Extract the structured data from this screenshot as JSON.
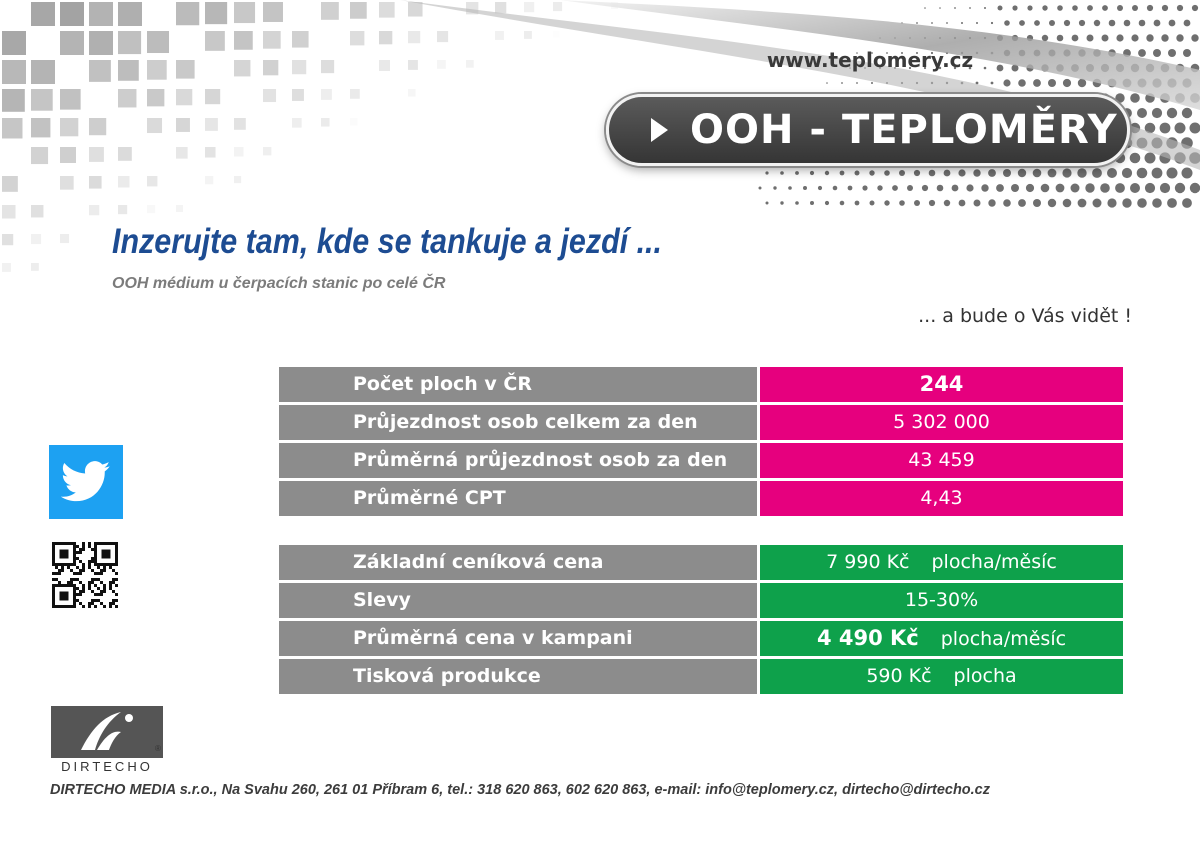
{
  "header": {
    "url": "www.teplomery.cz",
    "badge_title": "OOH - TEPLOMĚRY"
  },
  "intro": {
    "headline": "Inzerujte tam, kde se tankuje a jezdí ...",
    "subline": "OOH médium u čerpacích stanic po celé ČR",
    "tagline": "... a bude o Vás vidět !"
  },
  "stats_table": {
    "rows": [
      {
        "label": "Počet ploch v ČR",
        "value": "244"
      },
      {
        "label": "Průjezdnost osob celkem za den",
        "value": "5 302 000"
      },
      {
        "label": "Průměrná průjezdnost osob za den",
        "value": "43 459"
      },
      {
        "label": "Průměrné CPT",
        "value": "4,43"
      }
    ]
  },
  "price_table": {
    "rows": [
      {
        "label": "Základní ceníková cena",
        "value": "7 990 Kč",
        "unit": "plocha/měsíc"
      },
      {
        "label": "Slevy",
        "value": "15-30%",
        "unit": ""
      },
      {
        "label": "Průměrná cena v kampani",
        "value": "4 490 Kč",
        "unit": "plocha/měsíc"
      },
      {
        "label": "Tisková produkce",
        "value": "590 Kč",
        "unit": "plocha"
      }
    ]
  },
  "social": {
    "icon": "twitter-bird-icon",
    "qr": "qr-code-icon"
  },
  "logo": {
    "text": "DIRTECHO",
    "mark": "®"
  },
  "footer": {
    "contact": "DIRTECHO MEDIA s.r.o., Na Svahu 260, 261 01 Příbram 6, tel.: 318 620 863, 602 620 863, e-mail: info@teplomery.cz, dirtecho@dirtecho.cz"
  },
  "colors": {
    "headline_blue": "#1d4c92",
    "magenta": "#e6007e",
    "green": "#0ea14b",
    "label_gray": "#8c8c8c",
    "twitter_blue": "#1da1f2"
  }
}
